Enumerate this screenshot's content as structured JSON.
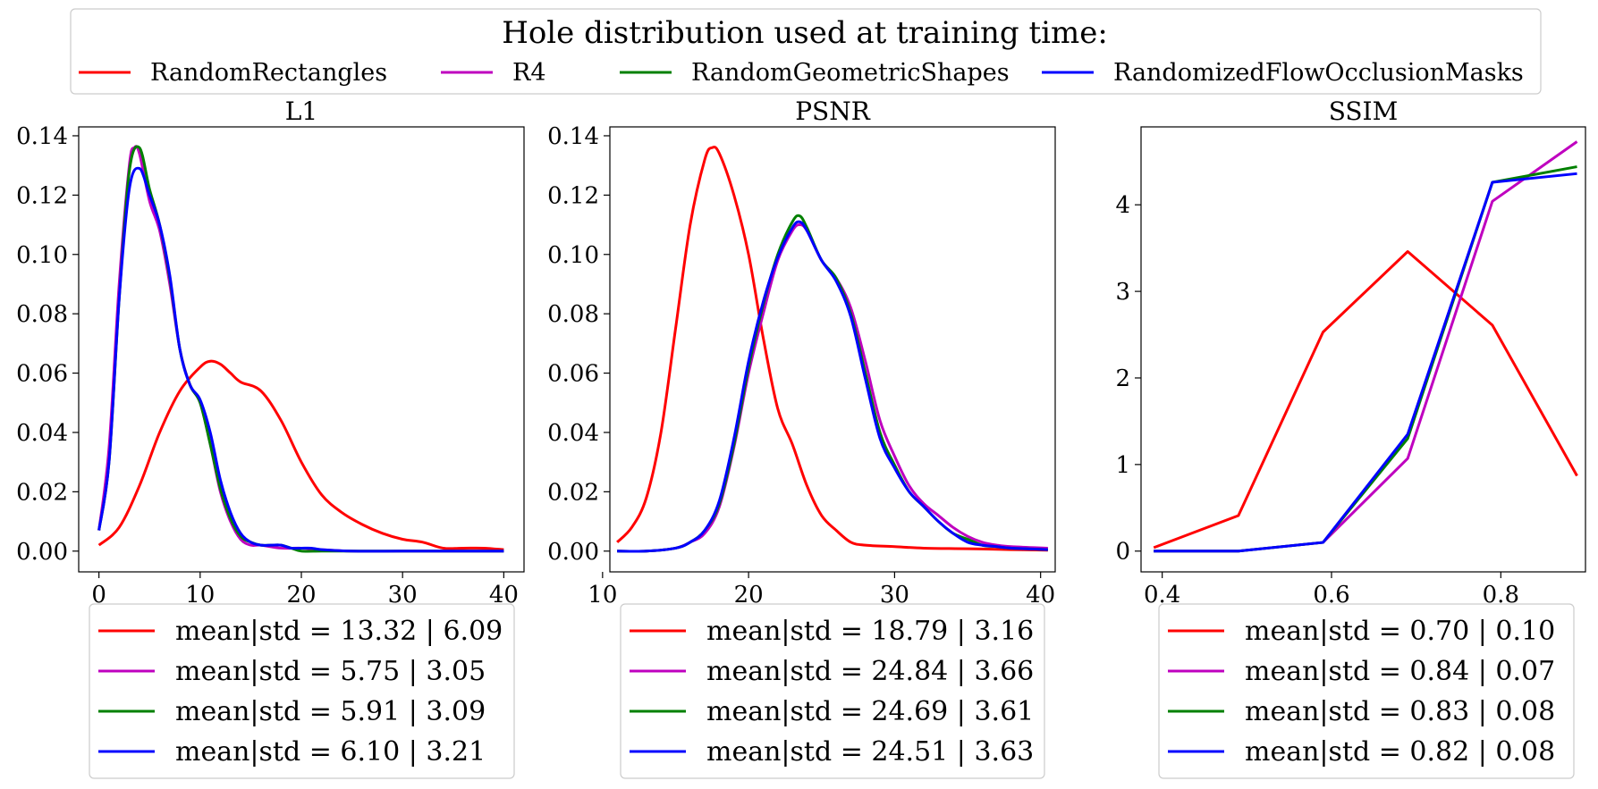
{
  "figure": {
    "legend_title": "Hole distribution used at training time:",
    "series": [
      {
        "name": "RandomRectangles",
        "color": "#ff0000"
      },
      {
        "name": "R4",
        "color": "#bf00bf"
      },
      {
        "name": "RandomGeometricShapes",
        "color": "#008000"
      },
      {
        "name": "RandomizedFlowOcclusionMasks",
        "color": "#0000ff"
      }
    ]
  },
  "chart_data": [
    {
      "type": "line",
      "title": "L1",
      "xlim": [
        -2,
        42
      ],
      "ylim": [
        -0.007,
        0.143
      ],
      "xticks": [
        0,
        10,
        20,
        30,
        40
      ],
      "xtick_labels": [
        "0",
        "10",
        "20",
        "30",
        "40"
      ],
      "yticks": [
        0,
        0.02,
        0.04,
        0.06,
        0.08,
        0.1,
        0.12,
        0.14
      ],
      "ytick_labels": [
        "0.00",
        "0.02",
        "0.04",
        "0.06",
        "0.08",
        "0.10",
        "0.12",
        "0.14"
      ],
      "series": [
        {
          "name": "RandomRectangles",
          "x": [
            0,
            2,
            4,
            6,
            8,
            10,
            11,
            12,
            13,
            14,
            16,
            18,
            20,
            22,
            24,
            26,
            28,
            30,
            32,
            34,
            36,
            38,
            40
          ],
          "y": [
            0.002,
            0.008,
            0.022,
            0.04,
            0.054,
            0.062,
            0.064,
            0.063,
            0.06,
            0.057,
            0.054,
            0.044,
            0.03,
            0.019,
            0.013,
            0.009,
            0.006,
            0.004,
            0.003,
            0.001,
            0.001,
            0.001,
            0.0005
          ]
        },
        {
          "name": "R4",
          "x": [
            0,
            1,
            2,
            3,
            3.5,
            4,
            5,
            6,
            7,
            8,
            9,
            10,
            11,
            12,
            13,
            14,
            15,
            16,
            18,
            20,
            22,
            25,
            30,
            35,
            40
          ],
          "y": [
            0.007,
            0.035,
            0.09,
            0.13,
            0.136,
            0.134,
            0.118,
            0.108,
            0.09,
            0.068,
            0.056,
            0.05,
            0.036,
            0.02,
            0.01,
            0.004,
            0.002,
            0.002,
            0.001,
            0.001,
            0.0005,
            0.0,
            0.0,
            0.0,
            0.0
          ]
        },
        {
          "name": "RandomGeometricShapes",
          "x": [
            0,
            1,
            2,
            3,
            4,
            5,
            6,
            7,
            8,
            9,
            10,
            11,
            12,
            13,
            14,
            15,
            16,
            17,
            18,
            19,
            20,
            22,
            25,
            30,
            35,
            40
          ],
          "y": [
            0.007,
            0.03,
            0.085,
            0.128,
            0.136,
            0.122,
            0.11,
            0.092,
            0.068,
            0.056,
            0.05,
            0.036,
            0.021,
            0.011,
            0.005,
            0.003,
            0.002,
            0.002,
            0.002,
            0.001,
            0.0,
            0.0,
            0.0,
            0.0,
            0.0,
            0.0
          ]
        },
        {
          "name": "RandomizedFlowOcclusionMasks",
          "x": [
            0,
            1,
            2,
            3,
            4,
            5,
            6,
            7,
            8,
            9,
            10,
            11,
            12,
            13,
            14,
            15,
            16,
            17,
            18,
            19,
            20,
            21,
            22,
            25,
            30,
            35,
            40
          ],
          "y": [
            0.007,
            0.03,
            0.085,
            0.122,
            0.129,
            0.12,
            0.11,
            0.093,
            0.068,
            0.056,
            0.051,
            0.04,
            0.024,
            0.013,
            0.006,
            0.003,
            0.002,
            0.002,
            0.002,
            0.001,
            0.001,
            0.001,
            0.0005,
            0.0,
            0.0,
            0.0,
            0.0
          ]
        }
      ],
      "legend": [
        "mean|std = 13.32 | 6.09",
        "mean|std = 5.75 | 3.05",
        "mean|std = 5.91 | 3.09",
        "mean|std = 6.10 | 3.21"
      ]
    },
    {
      "type": "line",
      "title": "PSNR",
      "xlim": [
        10.5,
        41
      ],
      "ylim": [
        -0.007,
        0.143
      ],
      "xticks": [
        10,
        20,
        30,
        40
      ],
      "xtick_labels": [
        "10",
        "20",
        "30",
        "40"
      ],
      "yticks": [
        0,
        0.02,
        0.04,
        0.06,
        0.08,
        0.1,
        0.12,
        0.14
      ],
      "ytick_labels": [
        "0.00",
        "0.02",
        "0.04",
        "0.06",
        "0.08",
        "0.10",
        "0.12",
        "0.14"
      ],
      "series": [
        {
          "name": "RandomRectangles",
          "x": [
            11,
            12,
            13,
            14,
            15,
            16,
            17,
            17.5,
            18,
            19,
            20,
            21,
            22,
            23,
            24,
            25,
            26,
            27,
            28,
            30,
            32,
            35,
            38,
            40.5
          ],
          "y": [
            0.003,
            0.008,
            0.018,
            0.04,
            0.075,
            0.11,
            0.132,
            0.136,
            0.134,
            0.12,
            0.1,
            0.072,
            0.048,
            0.036,
            0.022,
            0.012,
            0.007,
            0.003,
            0.002,
            0.0015,
            0.001,
            0.0008,
            0.0005,
            0.0003
          ]
        },
        {
          "name": "R4",
          "x": [
            11,
            13,
            15,
            16,
            17,
            18,
            19,
            20,
            21,
            22,
            23,
            23.5,
            24,
            25,
            26,
            27,
            28,
            29,
            30,
            31,
            32,
            33,
            34,
            35,
            36,
            37,
            38,
            40.5
          ],
          "y": [
            0.0,
            0.0,
            0.001,
            0.003,
            0.006,
            0.015,
            0.035,
            0.06,
            0.08,
            0.098,
            0.108,
            0.11,
            0.108,
            0.098,
            0.092,
            0.082,
            0.064,
            0.044,
            0.032,
            0.022,
            0.016,
            0.012,
            0.008,
            0.005,
            0.003,
            0.002,
            0.0015,
            0.001
          ]
        },
        {
          "name": "RandomGeometricShapes",
          "x": [
            11,
            13,
            15,
            16,
            17,
            18,
            19,
            20,
            21,
            22,
            23,
            23.5,
            24,
            25,
            26,
            27,
            28,
            29,
            30,
            31,
            32,
            33,
            34,
            35,
            36,
            37,
            38,
            40.5
          ],
          "y": [
            0.0,
            0.0,
            0.001,
            0.003,
            0.007,
            0.016,
            0.036,
            0.062,
            0.083,
            0.1,
            0.111,
            0.113,
            0.109,
            0.098,
            0.092,
            0.08,
            0.06,
            0.04,
            0.029,
            0.02,
            0.015,
            0.01,
            0.006,
            0.004,
            0.002,
            0.0015,
            0.001,
            0.0005
          ]
        },
        {
          "name": "RandomizedFlowOcclusionMasks",
          "x": [
            11,
            13,
            15,
            16,
            17,
            18,
            19,
            20,
            21,
            22,
            23,
            23.5,
            24,
            25,
            26,
            27,
            28,
            29,
            30,
            31,
            32,
            33,
            34,
            35,
            36,
            37,
            38,
            40.5
          ],
          "y": [
            0.0,
            0.0,
            0.001,
            0.003,
            0.007,
            0.017,
            0.038,
            0.064,
            0.084,
            0.099,
            0.109,
            0.111,
            0.108,
            0.098,
            0.091,
            0.079,
            0.058,
            0.038,
            0.028,
            0.02,
            0.015,
            0.01,
            0.006,
            0.003,
            0.002,
            0.0015,
            0.001,
            0.0005
          ]
        }
      ],
      "legend": [
        "mean|std = 18.79 | 3.16",
        "mean|std = 24.84 | 3.66",
        "mean|std = 24.69 | 3.61",
        "mean|std = 24.51 | 3.63"
      ]
    },
    {
      "type": "line",
      "title": "SSIM",
      "xlim": [
        0.375,
        0.9
      ],
      "ylim": [
        -0.24,
        4.9
      ],
      "xticks": [
        0.4,
        0.6,
        0.8
      ],
      "xtick_labels": [
        "0.4",
        "0.6",
        "0.8"
      ],
      "yticks": [
        0,
        1,
        2,
        3,
        4
      ],
      "ytick_labels": [
        "0",
        "1",
        "2",
        "3",
        "4"
      ],
      "series": [
        {
          "name": "RandomRectangles",
          "x": [
            0.39,
            0.49,
            0.59,
            0.69,
            0.79,
            0.89
          ],
          "y": [
            0.04,
            0.41,
            2.53,
            3.46,
            2.61,
            0.87
          ]
        },
        {
          "name": "R4",
          "x": [
            0.39,
            0.49,
            0.59,
            0.69,
            0.79,
            0.89
          ],
          "y": [
            0.0,
            0.0,
            0.1,
            1.07,
            4.04,
            4.73
          ]
        },
        {
          "name": "RandomGeometricShapes",
          "x": [
            0.39,
            0.49,
            0.59,
            0.69,
            0.79,
            0.89
          ],
          "y": [
            0.0,
            0.0,
            0.1,
            1.3,
            4.26,
            4.44
          ]
        },
        {
          "name": "RandomizedFlowOcclusionMasks",
          "x": [
            0.39,
            0.49,
            0.59,
            0.69,
            0.79,
            0.89
          ],
          "y": [
            0.0,
            0.0,
            0.1,
            1.35,
            4.26,
            4.36
          ]
        }
      ],
      "legend": [
        "mean|std = 0.70 | 0.10",
        "mean|std = 0.84 | 0.07",
        "mean|std = 0.83 | 0.08",
        "mean|std = 0.82 | 0.08"
      ]
    }
  ]
}
